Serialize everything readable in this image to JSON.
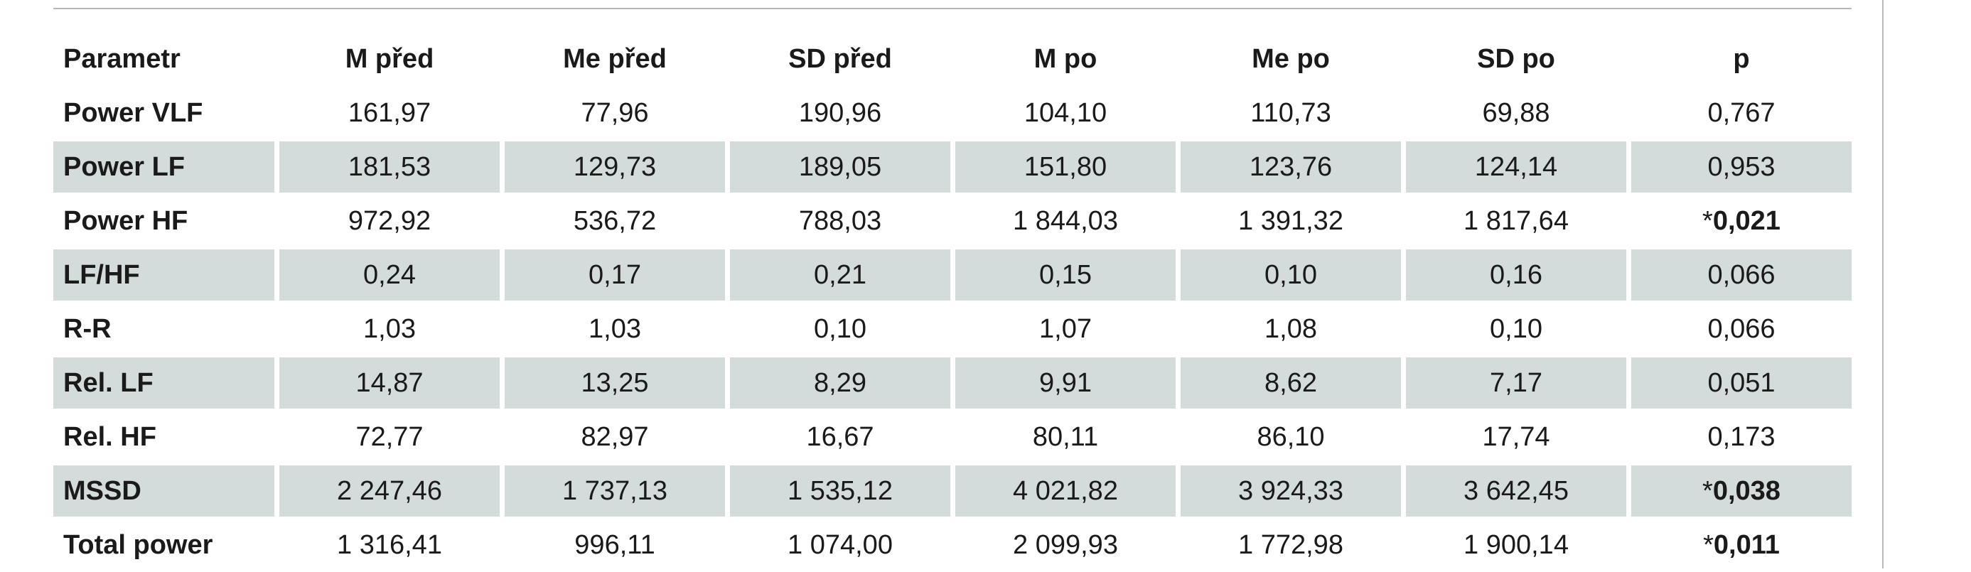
{
  "table": {
    "header": [
      "Parametr",
      "M před",
      "Me před",
      "SD před",
      "M po",
      "Me po",
      "SD po",
      "p"
    ],
    "rows": [
      [
        "Power VLF",
        "161,97",
        "77,96",
        "190,96",
        "104,10",
        "110,73",
        "69,88",
        "0,767"
      ],
      [
        "Power LF",
        "181,53",
        "129,73",
        "189,05",
        "151,80",
        "123,76",
        "124,14",
        "0,953"
      ],
      [
        "Power HF",
        "972,92",
        "536,72",
        "788,03",
        "1 844,03",
        "1 391,32",
        "1 817,64",
        {
          "star": "*",
          "text": "0,021"
        }
      ],
      [
        "LF/HF",
        "0,24",
        "0,17",
        "0,21",
        "0,15",
        "0,10",
        "0,16",
        "0,066"
      ],
      [
        "R-R",
        "1,03",
        "1,03",
        "0,10",
        "1,07",
        "1,08",
        "0,10",
        "0,066"
      ],
      [
        "Rel. LF",
        "14,87",
        "13,25",
        "8,29",
        "9,91",
        "8,62",
        "7,17",
        "0,051"
      ],
      [
        "Rel. HF",
        "72,77",
        "82,97",
        "16,67",
        "80,11",
        "86,10",
        "17,74",
        "0,173"
      ],
      [
        "MSSD",
        "2 247,46",
        "1 737,13",
        "1 535,12",
        "4 021,82",
        "3 924,33",
        "3 642,45",
        {
          "star": "*",
          "text": "0,038"
        }
      ],
      [
        "Total power",
        "1 316,41",
        "996,11",
        "1 074,00",
        "2 099,93",
        "1 772,98",
        "1 900,14",
        {
          "star": "*",
          "text": "0,011"
        }
      ]
    ]
  }
}
